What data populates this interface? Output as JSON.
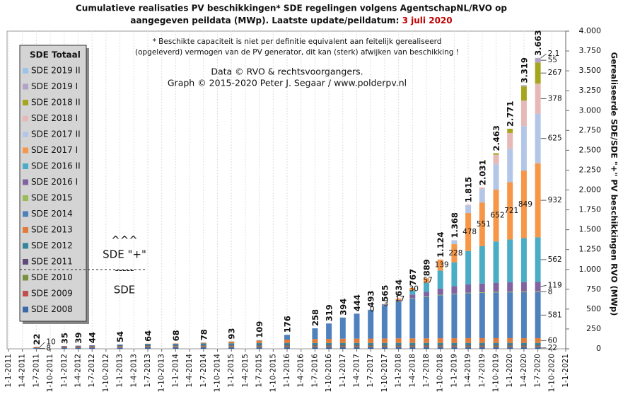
{
  "chart_data": {
    "type": "stacked_bar",
    "title_line1": "Cumulatieve realisaties PV beschikkingen*  SDE regelingen volgens AgentschapNL/RVO  op",
    "title_line2": "aangegeven peildata (MWp). Laatste update/peildatum: ",
    "title_date": "3 juli 2020",
    "note_lines": [
      "* Beschikte capaciteit is niet per definitie equivalent aan feitelijk gerealiseerd",
      "(opgeleverd) vermogen van de PV generator, dit kan (sterk) afwijken van beschikking !"
    ],
    "credit_lines": [
      "Data © RVO & rechtsvoorgangers.",
      "Graph  © 2015-2020  Peter J. Segaar / www.polderpv.nl"
    ],
    "ylabel": "Gerealiseerde SDE/SDE \"+\" PV beschikkingen RVO (MWp)",
    "legend_title": "SDE Totaal",
    "annotations": [
      "^^^",
      "SDE \"+\"",
      "-----",
      "SDE"
    ],
    "highlight_color": "#c00000",
    "xgrid": true,
    "ylim": [
      0,
      4000
    ],
    "yticks": [
      0,
      250,
      500,
      750,
      {
        "value": 1000,
        "label": "1.000"
      },
      {
        "value": 1250,
        "label": "1.250"
      },
      {
        "value": 1500,
        "label": "1.500"
      },
      {
        "value": 1750,
        "label": "1.750"
      },
      {
        "value": 2000,
        "label": "2.000"
      },
      {
        "value": 2250,
        "label": "2.250"
      },
      {
        "value": 2500,
        "label": "2.500"
      },
      {
        "value": 2750,
        "label": "2.750"
      },
      {
        "value": 3000,
        "label": "3.000"
      },
      {
        "value": 3250,
        "label": "3.250"
      },
      {
        "value": 3500,
        "label": "3.500"
      },
      {
        "value": 3750,
        "label": "3.750"
      },
      {
        "value": 4000,
        "label": "4.000"
      }
    ],
    "categories": [
      "1-1-2011",
      "1-4-2011",
      "1-7-2011",
      "1-10-2011",
      "1-1-2012",
      "1-4-2012",
      "1-7-2012",
      "1-10-2012",
      "1-1-2013",
      "1-4-2013",
      "1-7-2013",
      "1-10-2013",
      "1-1-2014",
      "1-4-2014",
      "1-7-2014",
      "1-10-2014",
      "1-1-2015",
      "1-4-2015",
      "1-7-2015",
      "1-10-2015",
      "1-1-2016",
      "1-4-2016",
      "1-7-2016",
      "1-10-2016",
      "1-1-2017",
      "1-4-2017",
      "1-7-2017",
      "1-10-2017",
      "1-1-2018",
      "1-4-2018",
      "1-7-2018",
      "1-10-2018",
      "1-1-2019",
      "1-4-2019",
      "1-7-2019",
      "1-10-2019",
      "1-1-2020",
      "1-4-2020",
      "1-7-2020",
      "1-10-2020",
      "1-1-2021"
    ],
    "totals": [
      null,
      null,
      22,
      null,
      35,
      39,
      44,
      null,
      54,
      null,
      64,
      null,
      68,
      null,
      78,
      null,
      93,
      null,
      109,
      null,
      176,
      null,
      258,
      319,
      394,
      444,
      493,
      565,
      634,
      767,
      889,
      {
        "value": 1124,
        "label": "1.124"
      },
      {
        "value": 1368,
        "label": "1.368"
      },
      {
        "value": 1815,
        "label": "1.815"
      },
      {
        "value": 2031,
        "label": "2.031"
      },
      {
        "value": 2463,
        "label": "2.463"
      },
      {
        "value": 2771,
        "label": "2.771"
      },
      {
        "value": 3319,
        "label": "3.319"
      },
      {
        "value": 3663,
        "label": "3.663"
      },
      null,
      null
    ],
    "series": [
      {
        "name": "SDE 2008",
        "color": "#3b6aa8",
        "label_first": true,
        "label_last": true,
        "values": [
          null,
          null,
          8,
          null,
          13,
          13,
          14,
          null,
          16,
          null,
          18,
          null,
          19,
          null,
          20,
          null,
          20,
          null,
          21,
          null,
          21,
          null,
          22,
          22,
          22,
          22,
          22,
          22,
          22,
          22,
          22,
          22,
          22,
          22,
          22,
          22,
          22,
          22,
          22,
          null,
          null
        ]
      },
      {
        "name": "SDE 2009",
        "color": "#c0504d",
        "label_first": true,
        "values": [
          null,
          null,
          10,
          null,
          10,
          10,
          10,
          null,
          10,
          null,
          10,
          null,
          10,
          null,
          10,
          null,
          10,
          null,
          10,
          null,
          10,
          null,
          10,
          10,
          10,
          10,
          10,
          10,
          10,
          10,
          10,
          10,
          10,
          10,
          10,
          10,
          10,
          10,
          10,
          null,
          null
        ]
      },
      {
        "name": "SDE 2010",
        "color": "#76923c",
        "values": [
          null,
          null,
          4,
          null,
          7,
          7,
          8,
          null,
          8,
          null,
          8,
          null,
          8,
          null,
          8,
          null,
          8,
          null,
          8,
          null,
          8,
          null,
          8,
          8,
          8,
          8,
          8,
          8,
          8,
          8,
          8,
          8,
          8,
          8,
          8,
          8,
          8,
          8,
          8,
          null,
          null
        ]
      },
      {
        "name": "SDE 2011",
        "color": "#604a7b",
        "values": [
          null,
          null,
          null,
          null,
          5,
          9,
          10,
          null,
          10,
          null,
          10,
          null,
          10,
          null,
          10,
          null,
          10,
          null,
          10,
          null,
          10,
          null,
          10,
          10,
          10,
          10,
          10,
          10,
          10,
          10,
          10,
          10,
          10,
          10,
          10,
          10,
          10,
          10,
          10,
          null,
          null
        ]
      },
      {
        "name": "SDE 2012",
        "color": "#31859c",
        "values": [
          null,
          null,
          null,
          null,
          null,
          null,
          2,
          null,
          10,
          null,
          16,
          null,
          17,
          null,
          20,
          null,
          21,
          null,
          22,
          null,
          22,
          null,
          23,
          23,
          23,
          23,
          23,
          23,
          24,
          24,
          24,
          24,
          24,
          24,
          24,
          24,
          24,
          24,
          24,
          null,
          null
        ]
      },
      {
        "name": "SDE 2013",
        "color": "#e07b39",
        "label_last": true,
        "values": [
          null,
          null,
          null,
          null,
          null,
          null,
          null,
          null,
          null,
          null,
          2,
          null,
          4,
          null,
          10,
          null,
          22,
          null,
          33,
          null,
          45,
          null,
          50,
          52,
          54,
          55,
          56,
          57,
          58,
          58,
          58,
          59,
          59,
          60,
          60,
          60,
          60,
          60,
          60,
          null,
          null
        ]
      },
      {
        "name": "SDE 2014",
        "color": "#4f81bd",
        "label_last": true,
        "values": [
          null,
          null,
          null,
          null,
          null,
          null,
          null,
          null,
          null,
          null,
          null,
          null,
          null,
          null,
          null,
          null,
          2,
          null,
          5,
          null,
          60,
          null,
          135,
          194,
          265,
          314,
          360,
          420,
          460,
          500,
          520,
          540,
          555,
          565,
          570,
          575,
          578,
          580,
          581,
          null,
          null
        ]
      },
      {
        "name": "SDE 2015",
        "color": "#9bbb59",
        "label_last": true,
        "values": [
          null,
          null,
          null,
          null,
          null,
          null,
          null,
          null,
          null,
          null,
          null,
          null,
          null,
          null,
          null,
          null,
          null,
          null,
          null,
          null,
          null,
          null,
          null,
          null,
          2,
          2,
          3,
          4,
          5,
          6,
          6,
          7,
          7,
          8,
          8,
          8,
          8,
          8,
          8,
          null,
          null
        ]
      },
      {
        "name": "SDE 2016 I",
        "color": "#8064a2",
        "label_last": true,
        "values": [
          null,
          null,
          null,
          null,
          null,
          null,
          null,
          null,
          null,
          null,
          null,
          null,
          null,
          null,
          null,
          null,
          null,
          null,
          null,
          null,
          null,
          null,
          null,
          null,
          null,
          null,
          1,
          8,
          20,
          45,
          60,
          80,
          95,
          105,
          110,
          115,
          117,
          118,
          119,
          null,
          null
        ]
      },
      {
        "name": "SDE 2016 II",
        "color": "#4bacc6",
        "label_last": true,
        "values": [
          null,
          null,
          null,
          null,
          null,
          null,
          null,
          null,
          null,
          null,
          null,
          null,
          null,
          null,
          null,
          null,
          null,
          null,
          null,
          null,
          null,
          null,
          null,
          null,
          null,
          null,
          null,
          null,
          null,
          54,
          114,
          225,
          300,
          420,
          470,
          520,
          540,
          555,
          562,
          null,
          null
        ]
      },
      {
        "name": "SDE 2017 I",
        "color": "#f79646",
        "highlight": true,
        "label_inside": true,
        "label_last": true,
        "values": [
          null,
          null,
          null,
          null,
          null,
          null,
          null,
          null,
          null,
          null,
          null,
          null,
          null,
          null,
          null,
          null,
          null,
          null,
          null,
          null,
          null,
          null,
          null,
          null,
          null,
          null,
          0,
          3,
          17,
          30,
          57,
          139,
          228,
          478,
          551,
          652,
          721,
          849,
          932,
          null,
          null
        ]
      },
      {
        "name": "SDE 2017 II",
        "color": "#b4c6e7",
        "label_last": true,
        "values": [
          null,
          null,
          null,
          null,
          null,
          null,
          null,
          null,
          null,
          null,
          null,
          null,
          null,
          null,
          null,
          null,
          null,
          null,
          null,
          null,
          null,
          null,
          null,
          null,
          null,
          null,
          null,
          null,
          null,
          null,
          null,
          null,
          50,
          95,
          170,
          320,
          420,
          560,
          625,
          null,
          null
        ]
      },
      {
        "name": "SDE 2018 I",
        "color": "#e6b9b8",
        "label_last": true,
        "values": [
          null,
          null,
          null,
          null,
          null,
          null,
          null,
          null,
          null,
          null,
          null,
          null,
          null,
          null,
          null,
          null,
          null,
          null,
          null,
          null,
          null,
          null,
          null,
          null,
          null,
          null,
          null,
          null,
          null,
          null,
          null,
          null,
          null,
          10,
          18,
          120,
          200,
          320,
          378,
          null,
          null
        ]
      },
      {
        "name": "SDE 2018 II",
        "color": "#a6a61e",
        "label_last": true,
        "values": [
          null,
          null,
          null,
          null,
          null,
          null,
          null,
          null,
          null,
          null,
          null,
          null,
          null,
          null,
          null,
          null,
          null,
          null,
          null,
          null,
          null,
          null,
          null,
          null,
          null,
          null,
          null,
          null,
          null,
          null,
          null,
          null,
          null,
          null,
          null,
          19,
          53,
          180,
          267,
          null,
          null
        ]
      },
      {
        "name": "SDE 2019 I",
        "color": "#b3a2c7",
        "label_last": true,
        "values": [
          null,
          null,
          null,
          null,
          null,
          null,
          null,
          null,
          null,
          null,
          null,
          null,
          null,
          null,
          null,
          null,
          null,
          null,
          null,
          null,
          null,
          null,
          null,
          null,
          null,
          null,
          null,
          null,
          null,
          null,
          null,
          null,
          null,
          null,
          null,
          null,
          null,
          15,
          55,
          null,
          null
        ]
      },
      {
        "name": "SDE 2019 II",
        "color": "#9dc3e6",
        "label_last": true,
        "values": [
          null,
          null,
          null,
          null,
          null,
          null,
          null,
          null,
          null,
          null,
          null,
          null,
          null,
          null,
          null,
          null,
          null,
          null,
          null,
          null,
          null,
          null,
          null,
          null,
          null,
          null,
          null,
          null,
          null,
          null,
          null,
          null,
          null,
          null,
          null,
          null,
          null,
          null,
          2.1,
          null,
          null
        ]
      }
    ]
  }
}
